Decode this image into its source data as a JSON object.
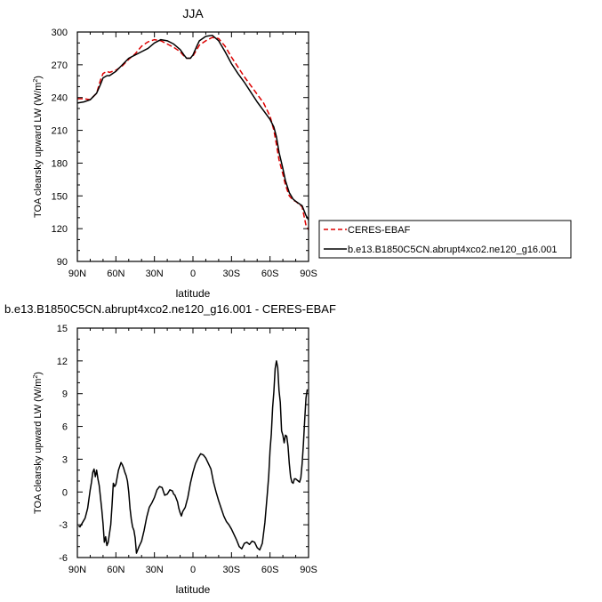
{
  "chart_data": [
    {
      "type": "line",
      "title": "JJA",
      "xlabel": "latitude",
      "ylabel": "TOA clearsky upward LW (W/m",
      "ylabel_sup": "2",
      "ylabel_close": ")",
      "xlim": [
        90,
        -90
      ],
      "ylim": [
        90,
        300
      ],
      "xticks": [
        90,
        60,
        30,
        0,
        -30,
        -60,
        -90
      ],
      "xticklabels": [
        "90N",
        "60N",
        "30N",
        "0",
        "30S",
        "60S",
        "90S"
      ],
      "yticks": [
        90,
        120,
        150,
        180,
        210,
        240,
        270,
        300
      ],
      "legend_position": "right",
      "series": [
        {
          "name": "CERES-EBAF",
          "color": "#dd0000",
          "style": "dashed",
          "x": [
            90,
            85,
            80,
            75,
            72,
            70,
            67,
            65,
            60,
            55,
            50,
            45,
            40,
            35,
            30,
            25,
            20,
            15,
            10,
            7,
            5,
            2,
            0,
            -3,
            -5,
            -10,
            -15,
            -20,
            -25,
            -30,
            -35,
            -40,
            -45,
            -50,
            -55,
            -60,
            -63,
            -65,
            -67,
            -70,
            -72,
            -75,
            -78,
            -80,
            -85,
            -88,
            -90
          ],
          "y": [
            239,
            239,
            238,
            244,
            256,
            262,
            264,
            263,
            265,
            269,
            275,
            280,
            287,
            291,
            293,
            292,
            289,
            286,
            282,
            278,
            276,
            276,
            278,
            284,
            288,
            292,
            295,
            294,
            287,
            277,
            268,
            259,
            251,
            243,
            235,
            223,
            210,
            197,
            183,
            170,
            160,
            150,
            146,
            145,
            140,
            123,
            119
          ]
        },
        {
          "name": "b.e13.B1850C5CN.abrupt4xco2.ne120_g16.001",
          "color": "#000000",
          "style": "solid",
          "x": [
            90,
            85,
            80,
            75,
            72,
            70,
            67,
            65,
            60,
            55,
            50,
            45,
            40,
            35,
            30,
            25,
            20,
            15,
            10,
            7,
            5,
            2,
            0,
            -3,
            -5,
            -10,
            -15,
            -20,
            -25,
            -30,
            -35,
            -40,
            -45,
            -50,
            -55,
            -60,
            -63,
            -65,
            -67,
            -70,
            -72,
            -75,
            -78,
            -80,
            -85,
            -88,
            -90
          ],
          "y": [
            235,
            236,
            238,
            244,
            252,
            258,
            260,
            260,
            264,
            270,
            276,
            279,
            282,
            285,
            290,
            293,
            292,
            289,
            284,
            279,
            276,
            276,
            279,
            287,
            292,
            296,
            297,
            292,
            282,
            271,
            262,
            254,
            245,
            236,
            228,
            220,
            213,
            204,
            190,
            175,
            164,
            153,
            147,
            145,
            141,
            132,
            128
          ]
        }
      ]
    },
    {
      "type": "line",
      "title": "b.e13.B1850C5CN.abrupt4xco2.ne120_g16.001 - CERES-EBAF",
      "xlabel": "latitude",
      "ylabel": "TOA clearsky upward LW (W/m",
      "ylabel_sup": "2",
      "ylabel_close": ")",
      "xlim": [
        90,
        -90
      ],
      "ylim": [
        -6,
        15
      ],
      "xticks": [
        90,
        60,
        30,
        0,
        -30,
        -60,
        -90
      ],
      "xticklabels": [
        "90N",
        "60N",
        "30N",
        "0",
        "30S",
        "60S",
        "90S"
      ],
      "yticks": [
        -6,
        -3,
        0,
        3,
        6,
        9,
        12,
        15
      ],
      "series": [
        {
          "name": "",
          "color": "#000000",
          "style": "solid",
          "x": [
            89,
            88,
            86,
            84,
            82,
            80,
            79,
            78,
            77,
            76,
            75,
            74,
            73,
            71,
            70,
            69,
            68,
            67,
            66,
            64,
            63,
            62,
            61,
            60,
            58,
            56,
            55,
            54,
            53,
            52,
            51,
            50,
            49,
            48,
            47,
            46,
            45,
            44,
            42,
            40,
            38,
            36,
            34,
            33,
            32,
            30,
            28,
            26,
            24,
            22,
            20,
            18,
            16,
            15,
            14,
            12,
            11,
            10,
            9,
            8,
            6,
            4,
            2,
            0,
            -2,
            -4,
            -6,
            -8,
            -10,
            -12,
            -14,
            -15,
            -16,
            -18,
            -20,
            -22,
            -24,
            -26,
            -28,
            -30,
            -32,
            -34,
            -36,
            -38,
            -40,
            -42,
            -44,
            -46,
            -48,
            -50,
            -52,
            -54,
            -56,
            -58,
            -59,
            -60,
            -61,
            -62,
            -63,
            -64,
            -65,
            -66,
            -67,
            -68,
            -69,
            -70,
            -71,
            -72,
            -73,
            -74,
            -75,
            -76,
            -77,
            -78,
            -79,
            -80,
            -81,
            -82,
            -83,
            -84,
            -85,
            -86,
            -87,
            -88,
            -89
          ],
          "y": [
            -3.1,
            -3.2,
            -2.8,
            -2.4,
            -1.5,
            0.2,
            0.9,
            1.8,
            2.1,
            1.4,
            2.0,
            1.2,
            0.6,
            -1.6,
            -2.9,
            -4.6,
            -4.1,
            -4.9,
            -4.6,
            -3.0,
            -1.2,
            0.8,
            0.5,
            0.7,
            2.0,
            2.7,
            2.5,
            2.2,
            1.8,
            1.5,
            1.0,
            0.0,
            -1.5,
            -2.5,
            -3.2,
            -3.5,
            -4.2,
            -5.6,
            -5.0,
            -4.5,
            -3.5,
            -2.3,
            -1.4,
            -1.2,
            -1.0,
            -0.5,
            0.2,
            0.5,
            0.4,
            -0.3,
            -0.2,
            0.2,
            0.1,
            -0.2,
            -0.3,
            -0.9,
            -1.5,
            -1.9,
            -2.2,
            -1.8,
            -1.4,
            -0.5,
            0.8,
            1.8,
            2.6,
            3.1,
            3.5,
            3.4,
            3.1,
            2.6,
            2.1,
            1.5,
            0.9,
            0.0,
            -0.8,
            -1.5,
            -2.2,
            -2.7,
            -3.0,
            -3.4,
            -3.9,
            -4.4,
            -5.0,
            -5.2,
            -4.7,
            -4.6,
            -4.8,
            -4.5,
            -4.6,
            -5.1,
            -5.3,
            -4.7,
            -2.8,
            0.0,
            1.5,
            3.8,
            5.3,
            7.7,
            9.2,
            11.3,
            12.0,
            11.4,
            9.3,
            8.2,
            5.6,
            5.2,
            4.5,
            5.2,
            5.1,
            4.2,
            2.6,
            1.4,
            0.9,
            0.8,
            1.2,
            1.2,
            1.1,
            1.0,
            0.9,
            1.3,
            2.6,
            4.4,
            6.6,
            8.6,
            9.4
          ]
        }
      ]
    }
  ]
}
